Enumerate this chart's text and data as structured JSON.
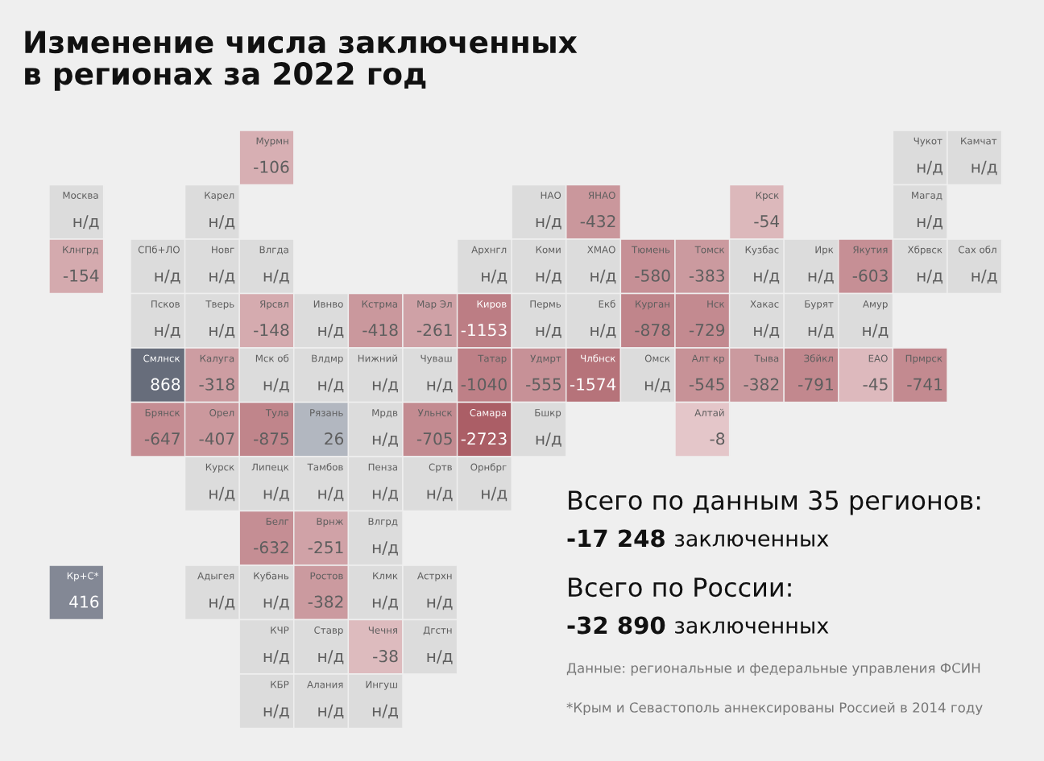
{
  "chart_data": {
    "type": "other",
    "title": "Изменение числа заключенных\nв регионах за 2022 год",
    "categories": [
      "Мурмн",
      "Чукот",
      "Камчат",
      "Москва",
      "Карел",
      "НАО",
      "ЯНАО",
      "Крск",
      "Магад",
      "Клнгрд",
      "СПб+ЛО",
      "Новг",
      "Влгда",
      "Архнгл",
      "Коми",
      "ХМАО",
      "Тюмень",
      "Томск",
      "Кузбас",
      "Ирк",
      "Якутия",
      "Хбрвск",
      "Сах обл",
      "Псков",
      "Тверь",
      "Ярсвл",
      "Ивнво",
      "Кстрма",
      "Мар Эл",
      "Киров",
      "Пермь",
      "Екб",
      "Курган",
      "Нск",
      "Хакас",
      "Бурят",
      "Амур",
      "Смлнск",
      "Калуга",
      "Мск об",
      "Влдмр",
      "Нижний",
      "Чуваш",
      "Татар",
      "Удмрт",
      "Члбнск",
      "Омск",
      "Алт кр",
      "Тыва",
      "Збйкл",
      "ЕАО",
      "Прмрск",
      "Брянск",
      "Орел",
      "Тула",
      "Рязань",
      "Мрдв",
      "Ульнск",
      "Самара",
      "Бшкр",
      "Алтай",
      "Курск",
      "Липецк",
      "Тамбов",
      "Пенза",
      "Сртв",
      "Орнбрг",
      "Белг",
      "Врнж",
      "Влгрд",
      "Кр+С*",
      "Адыгея",
      "Кубань",
      "Ростов",
      "Клмк",
      "Астрхн",
      "КЧР",
      "Ставр",
      "Чечня",
      "Дгстн",
      "КБР",
      "Алания",
      "Ингуш"
    ],
    "values": [
      -106,
      null,
      null,
      null,
      null,
      null,
      -432,
      -54,
      null,
      -154,
      null,
      null,
      null,
      null,
      null,
      null,
      -580,
      -383,
      null,
      null,
      -603,
      null,
      null,
      null,
      null,
      -148,
      null,
      -418,
      -261,
      -1153,
      null,
      null,
      -878,
      -729,
      null,
      null,
      null,
      868,
      -318,
      null,
      null,
      null,
      null,
      -1040,
      -555,
      -1574,
      null,
      -545,
      -382,
      -791,
      -45,
      -741,
      -647,
      -407,
      -875,
      26,
      null,
      -705,
      -2723,
      null,
      -8,
      null,
      null,
      null,
      null,
      null,
      null,
      -632,
      -251,
      null,
      416,
      null,
      null,
      -382,
      null,
      null,
      null,
      null,
      -38,
      null,
      null,
      null,
      null
    ],
    "value_labels": [
      "-106",
      "н/д",
      "н/д",
      "н/д",
      "н/д",
      "н/д",
      "-432",
      "-54",
      "н/д",
      "-154",
      "н/д",
      "н/д",
      "н/д",
      "н/д",
      "н/д",
      "н/д",
      "-580",
      "-383",
      "н/д",
      "н/д",
      "-603",
      "н/д",
      "н/д",
      "н/д",
      "н/д",
      "-148",
      "н/д",
      "-418",
      "-261",
      "-1153",
      "н/д",
      "н/д",
      "-878",
      "-729",
      "н/д",
      "н/д",
      "н/д",
      "868",
      "-318",
      "н/д",
      "н/д",
      "н/д",
      "н/д",
      "-1040",
      "-555",
      "-1574",
      "н/д",
      "-545",
      "-382",
      "-791",
      "-45",
      "-741",
      "-647",
      "-407",
      "-875",
      "26",
      "н/д",
      "-705",
      "-2723",
      "н/д",
      "-8",
      "н/д",
      "н/д",
      "н/д",
      "н/д",
      "н/д",
      "н/д",
      "-632",
      "-251",
      "н/д",
      "416",
      "н/д",
      "н/д",
      "-382",
      "н/д",
      "н/д",
      "н/д",
      "н/д",
      "-38",
      "н/д",
      "н/д",
      "н/д",
      "н/д"
    ],
    "annotations": [
      "Всего по данным 35 регионов:",
      "-17 248",
      "заключенных",
      "Всего по России:",
      "-32 890",
      "заключенных",
      "Данные: региональные и федеральные управления ФСИН",
      "*Крым и Севастополь аннексированы Россией в 2014 году"
    ]
  }
}
